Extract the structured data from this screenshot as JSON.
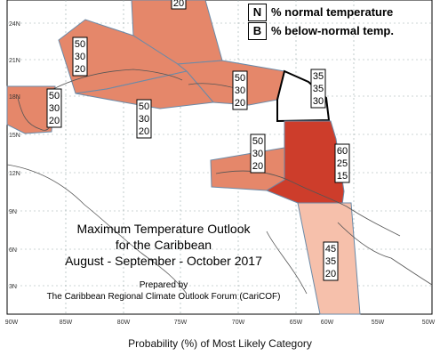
{
  "title": {
    "line1": "Maximum Temperature Outlook",
    "line2": "for the Caribbean",
    "line3": "August - September - October 2017"
  },
  "credit": {
    "line1": "Prepared by",
    "line2": "The Caribbean Regional Climate Outlook Forum (CariCOF)"
  },
  "caption": "Probability (%) of Most Likely Category",
  "legend": [
    {
      "code": "N",
      "label": "% normal temperature"
    },
    {
      "code": "B",
      "label": "% below-normal temp."
    }
  ],
  "lat_labels": [
    "24N",
    "21N",
    "18N",
    "15N",
    "12N",
    "9N",
    "6N",
    "3N"
  ],
  "lon_labels": [
    "90W",
    "85W",
    "80W",
    "75W",
    "70W",
    "65W",
    "60W",
    "55W",
    "50W"
  ],
  "zones": [
    {
      "name": "bahamas-top",
      "values": [
        "20"
      ],
      "color": "#e5876a"
    },
    {
      "name": "cuba-bahamas",
      "values": [
        "50",
        "30",
        "20"
      ],
      "color": "#e5876a"
    },
    {
      "name": "greater-antilles-east",
      "values": [
        "50",
        "30",
        "20"
      ],
      "color": "#e5876a"
    },
    {
      "name": "yucatan",
      "values": [
        "50",
        "30",
        "20"
      ],
      "color": "#e5876a"
    },
    {
      "name": "western-caribbean",
      "values": [
        "50",
        "30",
        "20"
      ],
      "color": "#e5876a"
    },
    {
      "name": "northern-leewards",
      "values": [
        "35",
        "35",
        "30"
      ],
      "color": "#ffffff"
    },
    {
      "name": "southern-south-america",
      "values": [
        "50",
        "30",
        "20"
      ],
      "color": "#e5876a"
    },
    {
      "name": "windwards-trinidad",
      "values": [
        "60",
        "25",
        "15"
      ],
      "color": "#cd3d2b"
    },
    {
      "name": "guianas",
      "values": [
        "45",
        "35",
        "20"
      ],
      "color": "#f6c0ab"
    }
  ],
  "colors": {
    "normal_50": "#e5876a",
    "normal_60": "#cd3d2b",
    "normal_45": "#f6c0ab",
    "border": "#6a8aa8",
    "land": "#555555"
  }
}
